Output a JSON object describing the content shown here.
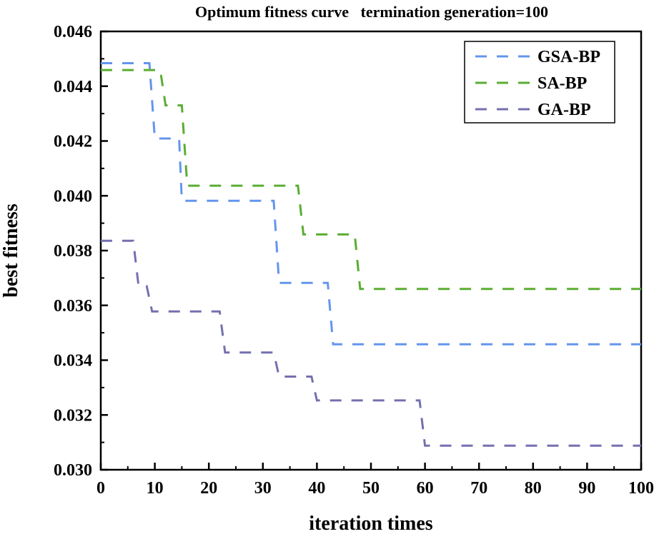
{
  "chart_data": {
    "type": "line",
    "title": "Optimum fitness curve   termination generation=100",
    "xlabel": "iteration times",
    "ylabel": "best fitness",
    "xlim": [
      0,
      100
    ],
    "ylim": [
      0.03,
      0.046
    ],
    "xticks": [
      "0",
      "10",
      "20",
      "30",
      "40",
      "50",
      "60",
      "70",
      "80",
      "90",
      "100"
    ],
    "yticks": [
      "0.030",
      "0.032",
      "0.034",
      "0.036",
      "0.038",
      "0.040",
      "0.042",
      "0.044",
      "0.046"
    ],
    "legend_position": "top-right",
    "grid": false,
    "series": [
      {
        "name": "GSA-BP",
        "color": "#6495ed",
        "x": [
          0,
          9,
          10,
          14.5,
          15,
          32,
          33,
          42,
          43,
          100
        ],
        "y": [
          0.04484,
          0.04484,
          0.04209,
          0.04209,
          0.03982,
          0.03982,
          0.03682,
          0.03682,
          0.03458,
          0.03458
        ]
      },
      {
        "name": "SA-BP",
        "color": "#5aad32",
        "x": [
          0,
          11,
          12,
          15,
          16,
          36.5,
          37.5,
          47,
          48,
          100
        ],
        "y": [
          0.04459,
          0.04459,
          0.0433,
          0.0433,
          0.04037,
          0.04037,
          0.03859,
          0.03859,
          0.0366,
          0.0366
        ]
      },
      {
        "name": "GA-BP",
        "color": "#7470b0",
        "x": [
          0,
          6,
          7,
          8.5,
          9.5,
          22,
          23,
          32,
          33,
          39,
          40,
          59,
          60,
          100
        ],
        "y": [
          0.03836,
          0.03836,
          0.0367,
          0.0367,
          0.03578,
          0.03578,
          0.03428,
          0.03428,
          0.0334,
          0.0334,
          0.03253,
          0.03253,
          0.03088,
          0.03088
        ]
      }
    ]
  }
}
